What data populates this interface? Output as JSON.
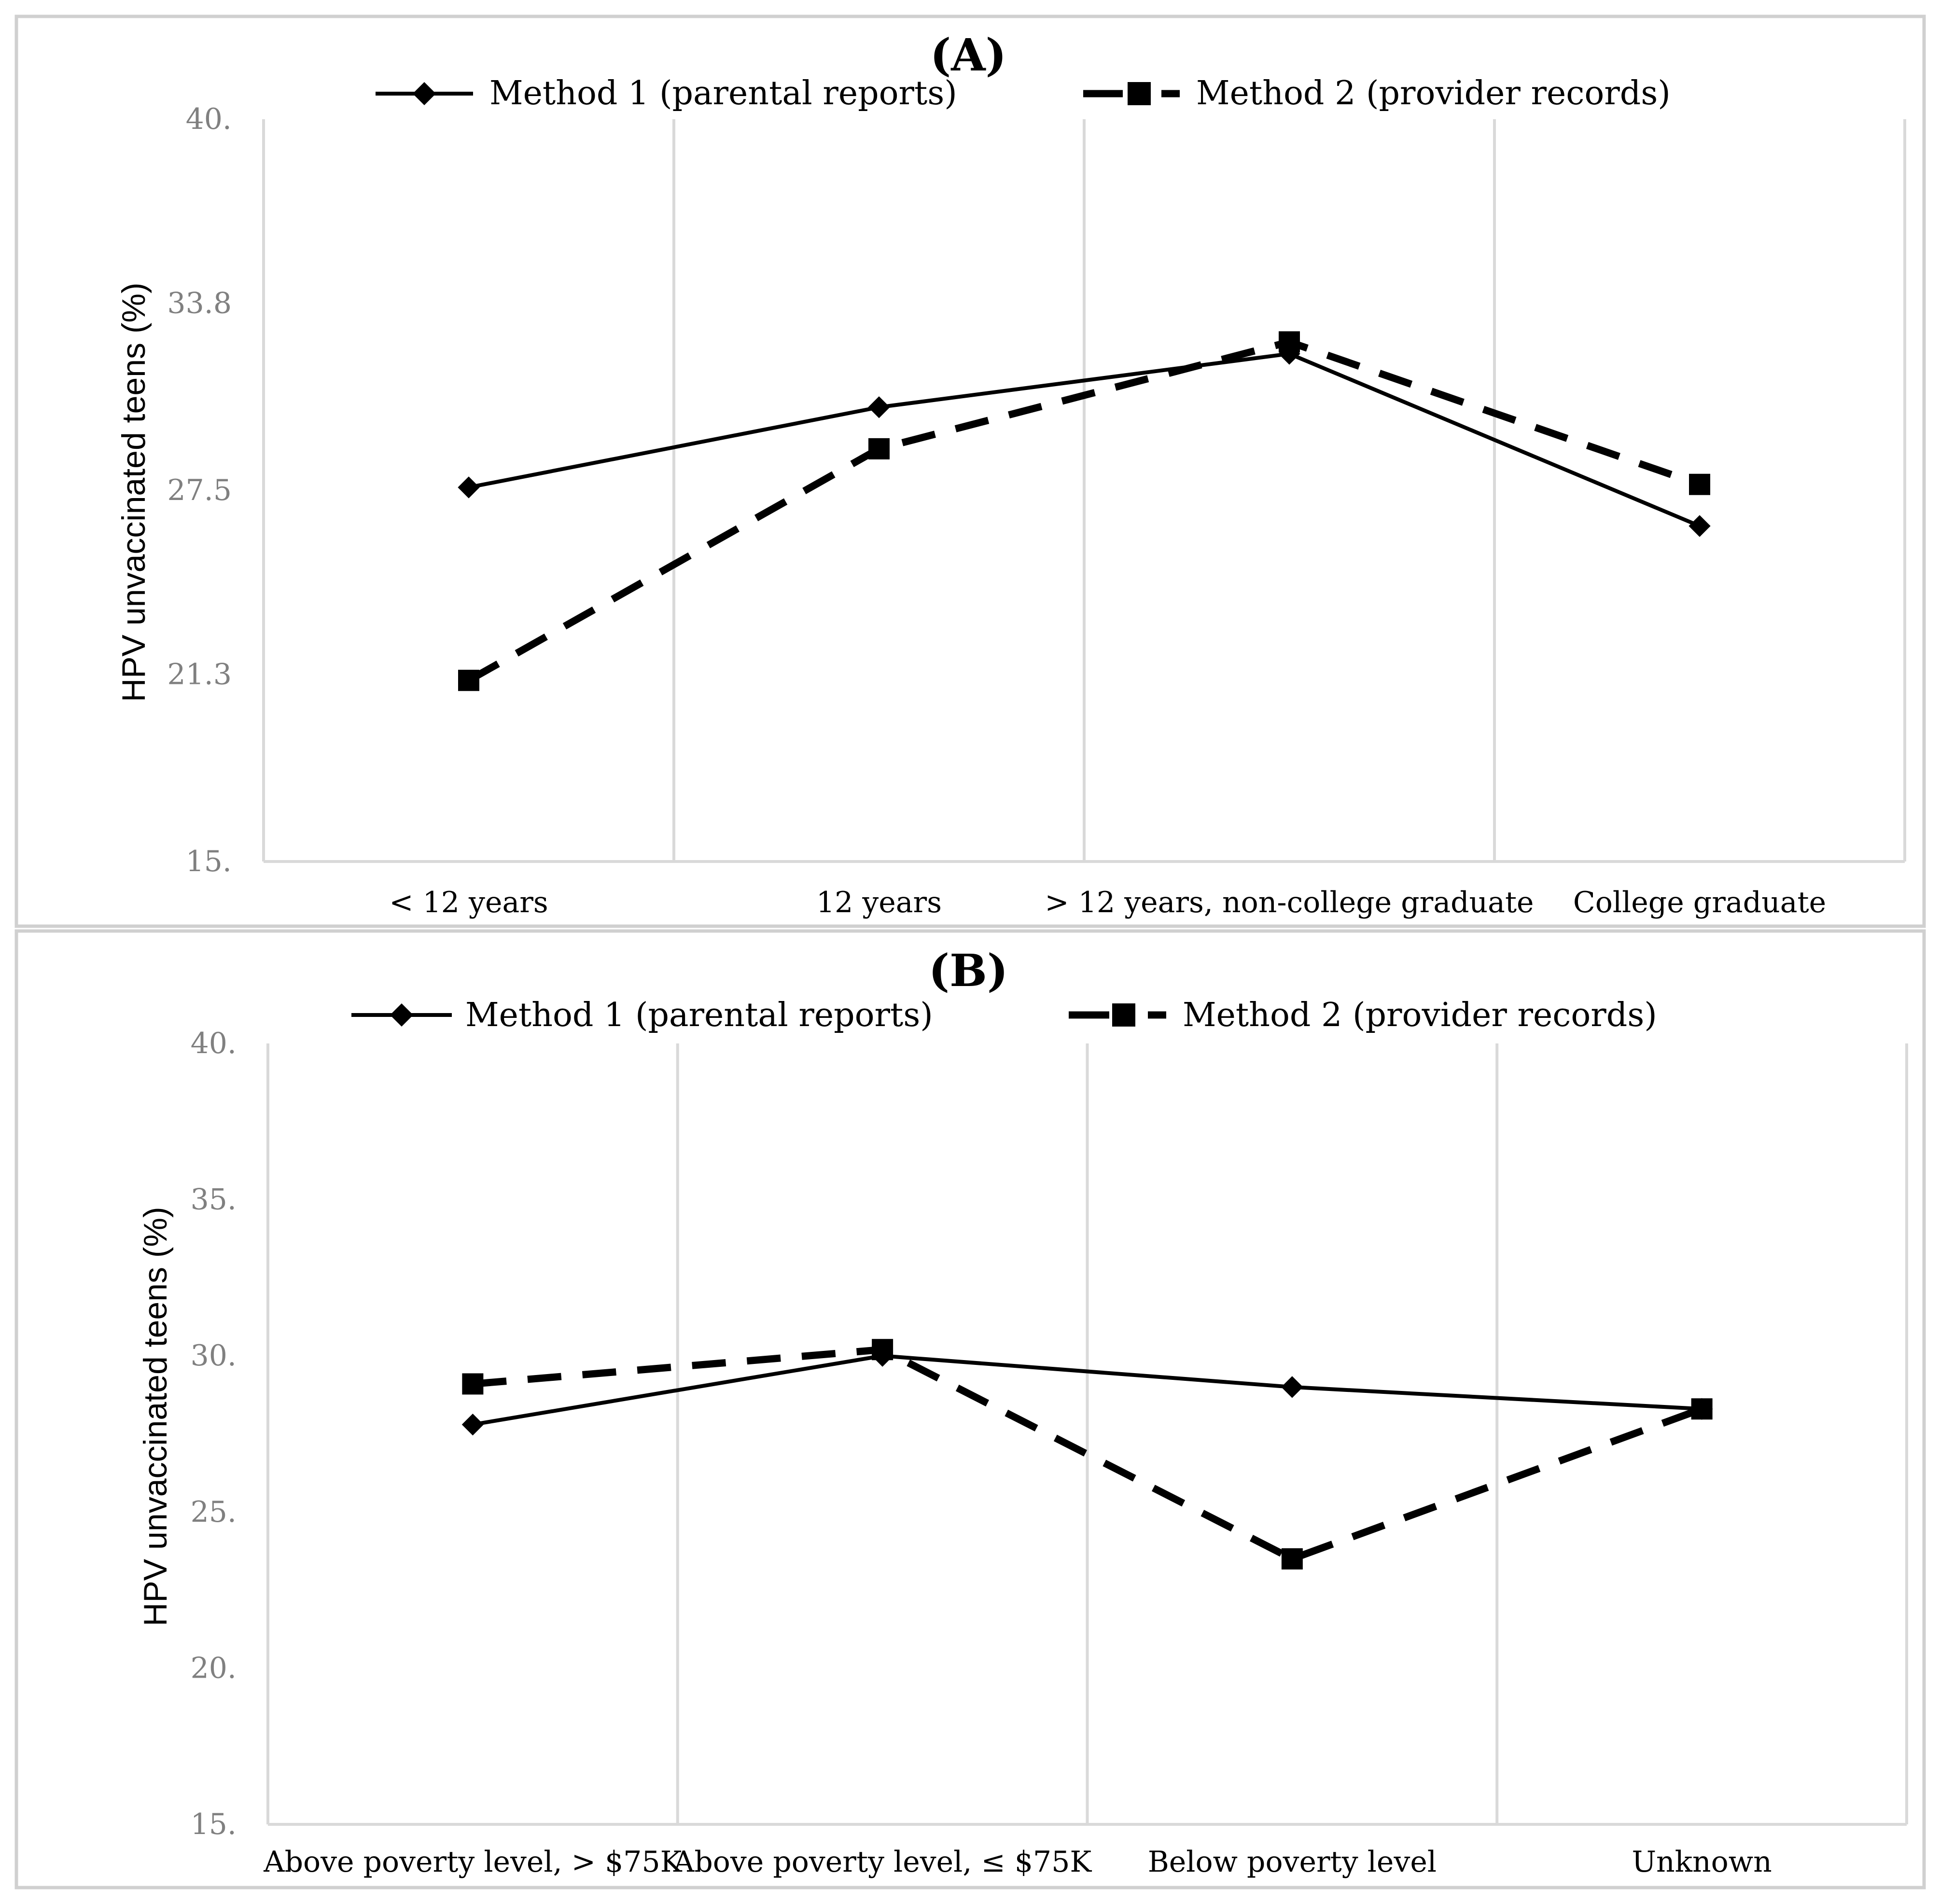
{
  "chart_data": [
    {
      "type": "line",
      "panel_label": "(A)",
      "title": "",
      "ylabel": "HPV unvaccinated teens (%)",
      "xlabel": "",
      "ylim": [
        15,
        40
      ],
      "yticks": [
        15,
        21.3,
        27.5,
        33.8,
        40
      ],
      "ytick_labels": [
        "15.",
        "21.3",
        "27.5",
        "33.8",
        "40."
      ],
      "categories": [
        "< 12 years",
        "12 years",
        "> 12 years, non-college graduate",
        "College graduate"
      ],
      "gridlines": "vertical",
      "legend_position": "top-center",
      "series": [
        {
          "name": "Method 1 (parental reports)",
          "style": "solid",
          "marker": "diamond",
          "values": [
            27.6,
            30.3,
            32.1,
            26.3
          ]
        },
        {
          "name": "Method 2 (provider records)",
          "style": "dashed",
          "marker": "square",
          "values": [
            21.1,
            28.9,
            32.5,
            27.7
          ]
        }
      ]
    },
    {
      "type": "line",
      "panel_label": "(B)",
      "title": "",
      "ylabel": "HPV unvaccinated teens (%)",
      "xlabel": "",
      "ylim": [
        15,
        40
      ],
      "yticks": [
        15,
        20,
        25,
        30,
        35,
        40
      ],
      "ytick_labels": [
        "15.",
        "20.",
        "25.",
        "30.",
        "35.",
        "40."
      ],
      "categories": [
        "Above poverty level, > $75K",
        "Above poverty level, ≤ $75K",
        "Below poverty level",
        "Unknown"
      ],
      "gridlines": "vertical",
      "legend_position": "top-center",
      "series": [
        {
          "name": "Method 1 (parental reports)",
          "style": "solid",
          "marker": "diamond",
          "values": [
            27.8,
            30.0,
            29.0,
            28.3
          ]
        },
        {
          "name": "Method 2 (provider records)",
          "style": "dashed",
          "marker": "square",
          "values": [
            29.1,
            30.2,
            23.5,
            28.3
          ]
        }
      ]
    }
  ]
}
